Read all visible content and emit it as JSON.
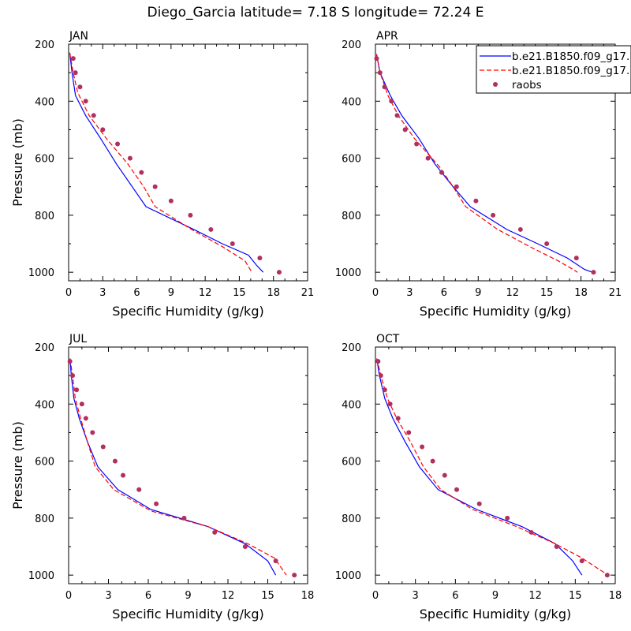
{
  "figure": {
    "title": "Diego_Garcia  latitude= 7.18 S longitude= 72.24 E"
  },
  "legend": {
    "entries": [
      {
        "label": "b.e21.B1850.f09_g17.",
        "style": "solid",
        "color": "#0000ff"
      },
      {
        "label": "b.e21.B1850.f09_g17.",
        "style": "dashed",
        "color": "#ff0000"
      },
      {
        "label": "raobs",
        "style": "marker",
        "color": "#b03060"
      }
    ]
  },
  "colors": {
    "model1": "#0000ff",
    "model2": "#ff0000",
    "raobs": "#b03060"
  },
  "chart_data": [
    {
      "type": "line",
      "panel_label": "JAN",
      "xlabel": "Specific Humidity (g/kg)",
      "ylabel": "Pressure (mb)",
      "xlim": [
        0,
        21
      ],
      "ylim": [
        1030,
        200
      ],
      "xticks": [
        0,
        3,
        6,
        9,
        12,
        15,
        18,
        21
      ],
      "yticks": [
        200,
        400,
        600,
        800,
        1000
      ],
      "series": [
        {
          "key": "model1",
          "style": "solid",
          "points": [
            [
              0.1,
              230
            ],
            [
              0.3,
              300
            ],
            [
              0.6,
              380
            ],
            [
              1.5,
              450
            ],
            [
              2.8,
              530
            ],
            [
              4.2,
              620
            ],
            [
              6.8,
              770
            ],
            [
              11,
              850
            ],
            [
              13.5,
              900
            ],
            [
              15.8,
              940
            ],
            [
              16.5,
              975
            ],
            [
              17.1,
              1000
            ]
          ]
        },
        {
          "key": "model2",
          "style": "dashed",
          "points": [
            [
              0.1,
              230
            ],
            [
              0.4,
              300
            ],
            [
              0.8,
              370
            ],
            [
              1.8,
              450
            ],
            [
              3.3,
              530
            ],
            [
              5.2,
              620
            ],
            [
              6.6,
              700
            ],
            [
              7.6,
              770
            ],
            [
              10.8,
              850
            ],
            [
              13.5,
              910
            ],
            [
              15.5,
              960
            ],
            [
              16.1,
              1000
            ]
          ]
        },
        {
          "key": "raobs",
          "style": "marker",
          "points": [
            [
              0.4,
              250
            ],
            [
              0.6,
              300
            ],
            [
              1,
              350
            ],
            [
              1.5,
              400
            ],
            [
              2.2,
              450
            ],
            [
              3,
              500
            ],
            [
              4.3,
              550
            ],
            [
              5.4,
              600
            ],
            [
              6.4,
              650
            ],
            [
              7.6,
              700
            ],
            [
              9,
              750
            ],
            [
              10.7,
              800
            ],
            [
              12.5,
              850
            ],
            [
              14.4,
              900
            ],
            [
              16.8,
              950
            ],
            [
              18.5,
              1000
            ]
          ]
        }
      ]
    },
    {
      "type": "line",
      "panel_label": "APR",
      "xlabel": "Specific Humidity (g/kg)",
      "ylabel": "",
      "xlim": [
        0,
        21
      ],
      "ylim": [
        1030,
        200
      ],
      "xticks": [
        0,
        3,
        6,
        9,
        12,
        15,
        18,
        21
      ],
      "yticks": [
        200,
        400,
        600,
        800,
        1000
      ],
      "series": [
        {
          "key": "model1",
          "style": "solid",
          "points": [
            [
              0.1,
              235
            ],
            [
              0.4,
              300
            ],
            [
              1.3,
              380
            ],
            [
              2.3,
              450
            ],
            [
              3.8,
              530
            ],
            [
              5.2,
              620
            ],
            [
              6.8,
              700
            ],
            [
              8.3,
              770
            ],
            [
              11.5,
              850
            ],
            [
              14.2,
              900
            ],
            [
              16.8,
              950
            ],
            [
              18.3,
              990
            ],
            [
              19,
              1000
            ]
          ]
        },
        {
          "key": "model2",
          "style": "dashed",
          "points": [
            [
              0.1,
              235
            ],
            [
              0.4,
              300
            ],
            [
              1.1,
              380
            ],
            [
              2,
              450
            ],
            [
              3.4,
              530
            ],
            [
              5.6,
              630
            ],
            [
              6.8,
              700
            ],
            [
              7.9,
              770
            ],
            [
              10.7,
              850
            ],
            [
              13.5,
              910
            ],
            [
              16,
              960
            ],
            [
              17.3,
              990
            ],
            [
              17.7,
              1000
            ]
          ]
        },
        {
          "key": "raobs",
          "style": "marker",
          "points": [
            [
              0.1,
              250
            ],
            [
              0.4,
              300
            ],
            [
              0.8,
              350
            ],
            [
              1.4,
              400
            ],
            [
              1.9,
              450
            ],
            [
              2.6,
              500
            ],
            [
              3.6,
              550
            ],
            [
              4.6,
              600
            ],
            [
              5.8,
              650
            ],
            [
              7.1,
              700
            ],
            [
              8.8,
              750
            ],
            [
              10.3,
              800
            ],
            [
              12.7,
              850
            ],
            [
              15,
              900
            ],
            [
              17.6,
              950
            ],
            [
              19.1,
              1000
            ]
          ]
        }
      ]
    },
    {
      "type": "line",
      "panel_label": "JUL",
      "xlabel": "Specific Humidity (g/kg)",
      "ylabel": "Pressure (mb)",
      "xlim": [
        0,
        18
      ],
      "ylim": [
        1030,
        200
      ],
      "xticks": [
        0,
        3,
        6,
        9,
        12,
        15,
        18
      ],
      "yticks": [
        200,
        400,
        600,
        800,
        1000
      ],
      "series": [
        {
          "key": "model1",
          "style": "solid",
          "points": [
            [
              0.1,
              240
            ],
            [
              0.2,
              300
            ],
            [
              0.4,
              380
            ],
            [
              0.8,
              450
            ],
            [
              1.4,
              530
            ],
            [
              2.2,
              620
            ],
            [
              3.7,
              700
            ],
            [
              6.2,
              770
            ],
            [
              10.5,
              830
            ],
            [
              13.3,
              890
            ],
            [
              15,
              950
            ],
            [
              15.6,
              1000
            ]
          ]
        },
        {
          "key": "model2",
          "style": "dashed",
          "points": [
            [
              0.1,
              240
            ],
            [
              0.3,
              300
            ],
            [
              0.5,
              380
            ],
            [
              0.9,
              450
            ],
            [
              1.4,
              530
            ],
            [
              2,
              620
            ],
            [
              3.4,
              700
            ],
            [
              6.2,
              775
            ],
            [
              10.5,
              830
            ],
            [
              13.5,
              890
            ],
            [
              15.5,
              940
            ],
            [
              16.4,
              1000
            ]
          ]
        },
        {
          "key": "raobs",
          "style": "marker",
          "points": [
            [
              0.1,
              250
            ],
            [
              0.3,
              300
            ],
            [
              0.6,
              350
            ],
            [
              1,
              400
            ],
            [
              1.3,
              450
            ],
            [
              1.8,
              500
            ],
            [
              2.6,
              550
            ],
            [
              3.5,
              600
            ],
            [
              4.1,
              650
            ],
            [
              5.3,
              700
            ],
            [
              6.6,
              750
            ],
            [
              8.7,
              800
            ],
            [
              11,
              850
            ],
            [
              13.3,
              900
            ],
            [
              15.6,
              950
            ],
            [
              17,
              1000
            ]
          ]
        }
      ]
    },
    {
      "type": "line",
      "panel_label": "OCT",
      "xlabel": "Specific Humidity (g/kg)",
      "ylabel": "",
      "xlim": [
        0,
        18
      ],
      "ylim": [
        1030,
        200
      ],
      "xticks": [
        0,
        3,
        6,
        9,
        12,
        15,
        18
      ],
      "yticks": [
        200,
        400,
        600,
        800,
        1000
      ],
      "series": [
        {
          "key": "model1",
          "style": "solid",
          "points": [
            [
              0.1,
              240
            ],
            [
              0.3,
              300
            ],
            [
              0.7,
              380
            ],
            [
              1.3,
              450
            ],
            [
              2.2,
              530
            ],
            [
              3.3,
              620
            ],
            [
              4.7,
              700
            ],
            [
              7.6,
              770
            ],
            [
              11,
              830
            ],
            [
              13.5,
              890
            ],
            [
              14.8,
              950
            ],
            [
              15.5,
              1000
            ]
          ]
        },
        {
          "key": "model2",
          "style": "dashed",
          "points": [
            [
              0.1,
              240
            ],
            [
              0.4,
              300
            ],
            [
              0.9,
              380
            ],
            [
              1.6,
              450
            ],
            [
              2.6,
              530
            ],
            [
              3.6,
              620
            ],
            [
              4.9,
              700
            ],
            [
              7.3,
              770
            ],
            [
              10.6,
              830
            ],
            [
              13.5,
              890
            ],
            [
              15.5,
              940
            ],
            [
              16.8,
              980
            ],
            [
              17.5,
              1000
            ]
          ]
        },
        {
          "key": "raobs",
          "style": "marker",
          "points": [
            [
              0.2,
              250
            ],
            [
              0.4,
              300
            ],
            [
              0.7,
              350
            ],
            [
              1.1,
              400
            ],
            [
              1.7,
              450
            ],
            [
              2.5,
              500
            ],
            [
              3.5,
              550
            ],
            [
              4.3,
              600
            ],
            [
              5.2,
              650
            ],
            [
              6.1,
              700
            ],
            [
              7.8,
              750
            ],
            [
              9.9,
              800
            ],
            [
              11.7,
              850
            ],
            [
              13.6,
              900
            ],
            [
              15.5,
              950
            ],
            [
              17.4,
              1000
            ]
          ]
        }
      ]
    }
  ]
}
